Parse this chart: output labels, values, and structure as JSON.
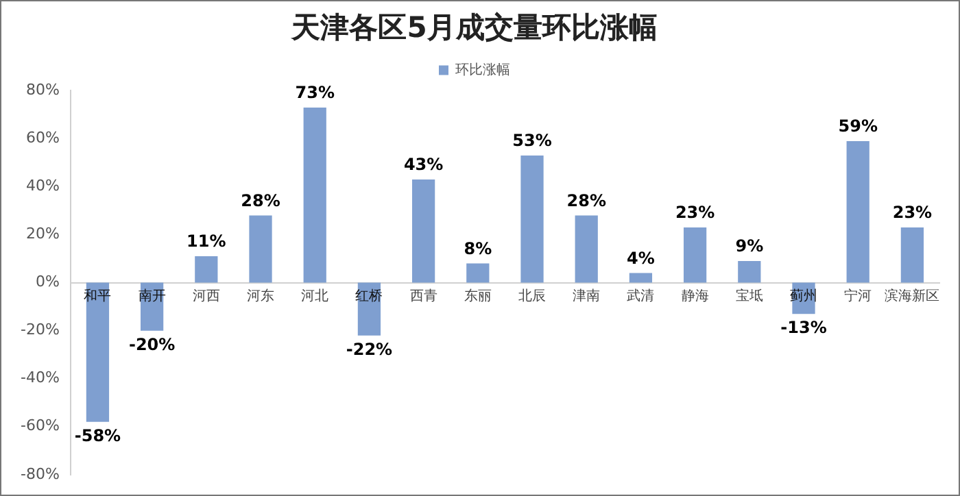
{
  "chart_data": {
    "type": "bar",
    "title": "天津各区5月成交量环比涨幅",
    "categories": [
      "和平",
      "南开",
      "河西",
      "河东",
      "河北",
      "红桥",
      "西青",
      "东丽",
      "北辰",
      "津南",
      "武清",
      "静海",
      "宝坻",
      "蓟州",
      "宁河",
      "滨海新区"
    ],
    "series": [
      {
        "name": "环比涨幅",
        "color": "#7f9fd0",
        "values": [
          -58,
          -20,
          11,
          28,
          73,
          -22,
          43,
          8,
          53,
          28,
          4,
          23,
          9,
          -13,
          59,
          23
        ],
        "value_labels": [
          "-58%",
          "-20%",
          "11%",
          "28%",
          "73%",
          "-22%",
          "43%",
          "8%",
          "53%",
          "28%",
          "4%",
          "23%",
          "9%",
          "-13%",
          "59%",
          "23%"
        ]
      }
    ],
    "ylim": [
      -80,
      80
    ],
    "yticks": [
      {
        "value": -80,
        "label": "-80%"
      },
      {
        "value": -60,
        "label": "-60%"
      },
      {
        "value": -40,
        "label": "-40%"
      },
      {
        "value": -20,
        "label": "-20%"
      },
      {
        "value": 0,
        "label": "0%"
      },
      {
        "value": 20,
        "label": "20%"
      },
      {
        "value": 40,
        "label": "40%"
      },
      {
        "value": 60,
        "label": "60%"
      },
      {
        "value": 80,
        "label": "80%"
      }
    ],
    "grid": false,
    "legend": "top"
  }
}
